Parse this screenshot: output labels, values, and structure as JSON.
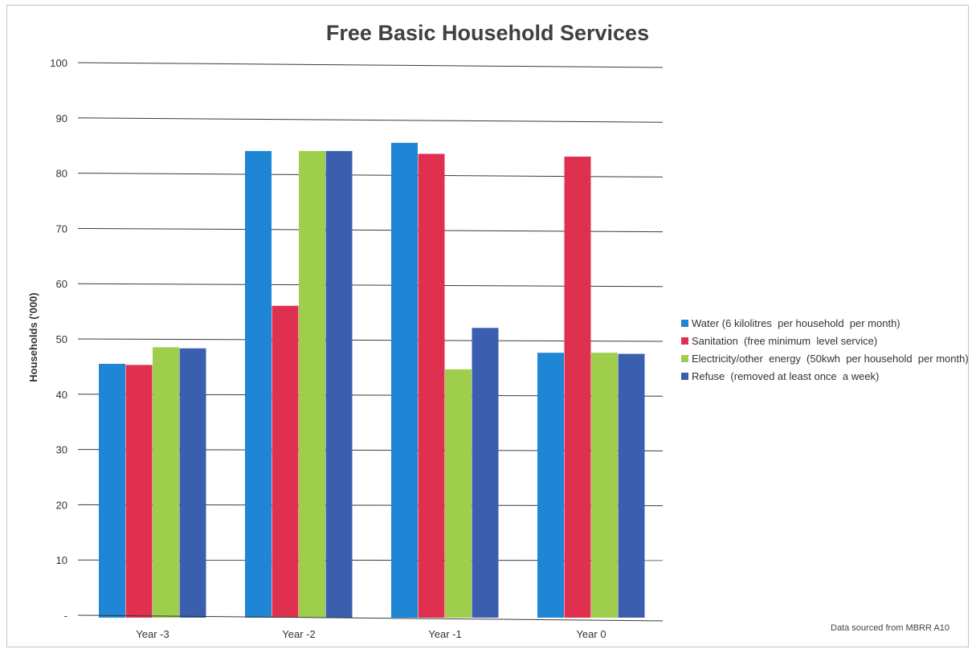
{
  "chart_data": {
    "type": "bar",
    "title": "Free Basic Household Services",
    "ylabel": "Households ('000)",
    "xlabel": "",
    "categories": [
      "Year -3",
      "Year -2",
      "Year -1",
      "Year 0"
    ],
    "y_ticks": [
      "-",
      "10",
      "20",
      "30",
      "40",
      "50",
      "60",
      "70",
      "80",
      "90",
      "100"
    ],
    "ylim": [
      0,
      100
    ],
    "grid": "horizontal",
    "legend_position": "right",
    "series": [
      {
        "name": "Water (6 kilolitres  per household  per month)",
        "color": "#1e86d4",
        "values": [
          45.5,
          84,
          85.5,
          47.5
        ]
      },
      {
        "name": "Sanitation  (free minimum  level service)",
        "color": "#e0304f",
        "values": [
          45.3,
          56,
          83.5,
          83
        ]
      },
      {
        "name": "Electricity/other  energy  (50kwh  per household  per month)",
        "color": "#9fcd4c",
        "values": [
          48.5,
          84,
          44.5,
          47.5
        ]
      },
      {
        "name": "Refuse  (removed at least once  a week)",
        "color": "#3b5fae",
        "values": [
          48.3,
          84,
          52,
          47.3
        ]
      }
    ],
    "source_note": "Data sourced from  MBRR A10"
  }
}
